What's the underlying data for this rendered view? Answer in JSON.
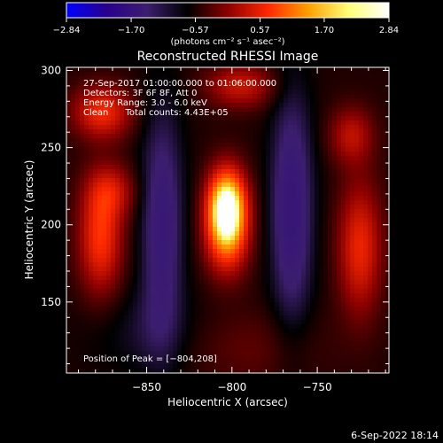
{
  "chart_data": {
    "type": "heatmap",
    "title": "Reconstructed RHESSI Image",
    "xlabel": "Heliocentric X (arcsec)",
    "ylabel": "Heliocentric Y (arcsec)",
    "xlim": [
      -897,
      -708
    ],
    "ylim": [
      104,
      302
    ],
    "x_ticks": [
      -850,
      -800,
      -750
    ],
    "x_tick_labels": [
      "−850",
      "−800",
      "−750"
    ],
    "y_ticks": [
      150,
      200,
      250,
      300
    ],
    "y_tick_labels": [
      "150",
      "200",
      "250",
      "300"
    ],
    "colorbar": {
      "min": -2.84,
      "max": 2.84,
      "ticks": [
        -2.84,
        -1.7,
        -0.57,
        0.57,
        1.7,
        2.84
      ],
      "tick_labels": [
        "−2.84",
        "−1.70",
        "−0.57",
        "0.57",
        "1.70",
        "2.84"
      ],
      "units_text": "(photons cm⁻² s⁻¹ asec⁻²)",
      "colors": [
        "#0000ff",
        "#28008c",
        "#3c1e6e",
        "#000000",
        "#8c0000",
        "#ff2800",
        "#ffa000",
        "#ffff78",
        "#ffffff"
      ]
    },
    "annotations": [
      "27-Sep-2017 01:00:00.000 to 01:06:00.000",
      "Detectors: 3F 6F 8F, Att 0",
      "Energy Range: 3.0 - 6.0 keV",
      "Clean      Total counts: 4.43E+05"
    ],
    "peak_text": "Position of Peak = [−804,208]",
    "sources": [
      {
        "x": -803,
        "y": 212,
        "sx": 8,
        "sy": 17,
        "amp": 2.84
      },
      {
        "x": -803,
        "y": 188,
        "sx": 9,
        "sy": 17,
        "amp": 1.1
      },
      {
        "x": -876,
        "y": 273,
        "sx": 12,
        "sy": 12,
        "amp": 1.2
      },
      {
        "x": -877,
        "y": 192,
        "sx": 9,
        "sy": 26,
        "amp": 1.3
      },
      {
        "x": -870,
        "y": 222,
        "sx": 10,
        "sy": 12,
        "amp": 0.7
      },
      {
        "x": -725,
        "y": 185,
        "sx": 9,
        "sy": 30,
        "amp": 1.15
      },
      {
        "x": -730,
        "y": 258,
        "sx": 9,
        "sy": 13,
        "amp": 0.8
      },
      {
        "x": -795,
        "y": 290,
        "sx": 14,
        "sy": 10,
        "amp": 0.9
      },
      {
        "x": -841,
        "y": 200,
        "sx": 9,
        "sy": 55,
        "amp": -0.85
      },
      {
        "x": -765,
        "y": 210,
        "sx": 9,
        "sy": 55,
        "amp": -0.95
      },
      {
        "x": -790,
        "y": 120,
        "sx": 30,
        "sy": 18,
        "amp": 0.3
      },
      {
        "x": -850,
        "y": 130,
        "sx": 25,
        "sy": 20,
        "amp": -0.3
      }
    ]
  },
  "footer": {
    "date": "6-Sep-2022 18:14"
  }
}
